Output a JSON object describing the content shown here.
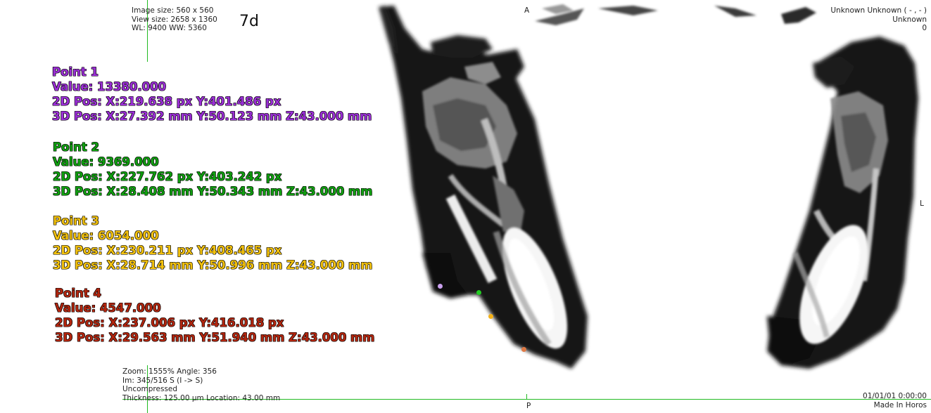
{
  "viewer": {
    "info_top_left": [
      "Image size: 560 x 560",
      "View size: 2658 x 1360",
      "WL: 9400 WW: 5360"
    ],
    "series_tag": "7d",
    "info_top_right": [
      "Unknown Unknown ( - , - )",
      "Unknown",
      "0"
    ],
    "orientation": {
      "top": "A",
      "bottom": "P",
      "right": "L"
    },
    "info_bottom_left": [
      "Zoom: 1555% Angle: 356",
      "Im: 345/516  S (I -> S)",
      "Uncompressed",
      "Thickness: 125.00 µm Location: 43.00 mm"
    ],
    "info_bottom_right": [
      "01/01/01 0:00:00",
      "Made In Horos"
    ]
  },
  "points": [
    {
      "title": "Point 1",
      "value": "Value: 13380.000",
      "pos2d": "2D Pos: X:219.638 px Y:401.486 px",
      "pos3d": "3D Pos: X:27.392 mm Y:50.123 mm Z:43.000 mm",
      "color": "#9b2fd6",
      "marker_color": "#c9a0ee"
    },
    {
      "title": "Point 2",
      "value": "Value: 9369.000",
      "pos2d": "2D Pos: X:227.762 px Y:403.242 px",
      "pos3d": "3D Pos: X:28.408 mm Y:50.343 mm Z:43.000 mm",
      "color": "#11a011",
      "marker_color": "#22cc22"
    },
    {
      "title": "Point 3",
      "value": "Value: 6054.000",
      "pos2d": "2D Pos: X:230.211 px Y:408.465 px",
      "pos3d": "3D Pos: X:28.714 mm Y:50.996 mm Z:43.000 mm",
      "color": "#f2c10e",
      "marker_color": "#f4b21a"
    },
    {
      "title": "Point 4",
      "value": "Value: 4547.000",
      "pos2d": "2D Pos: X:237.006 px Y:416.018 px",
      "pos3d": "3D Pos: X:29.563 mm Y:51.940 mm Z:43.000 mm",
      "color": "#b3260f",
      "marker_color": "#e07a45"
    }
  ]
}
